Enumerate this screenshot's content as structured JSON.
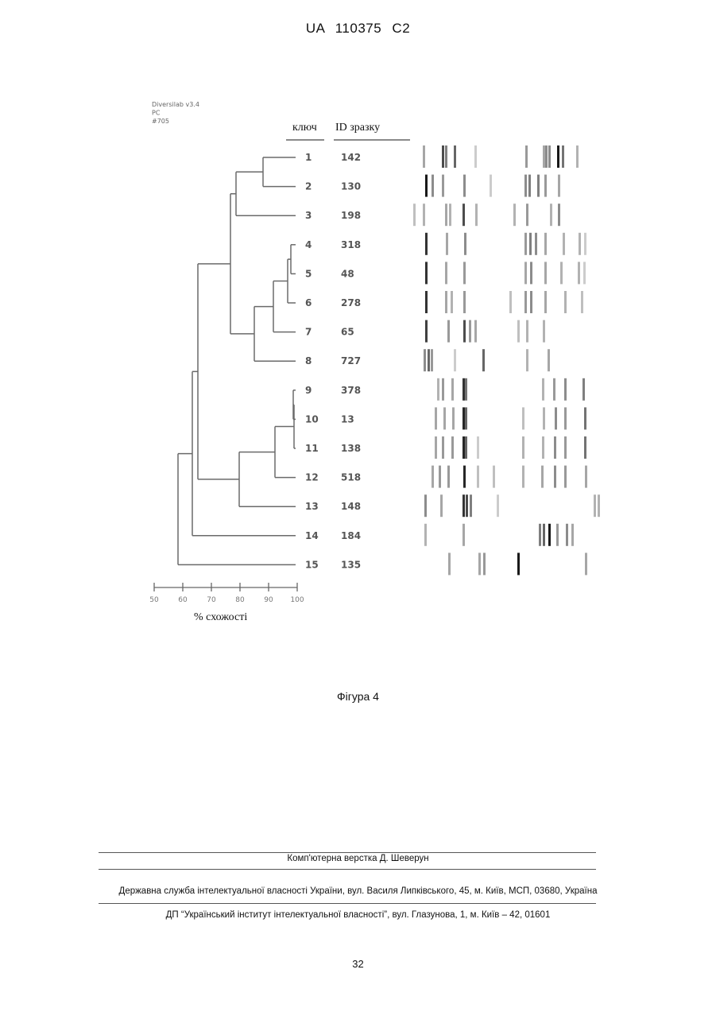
{
  "header": {
    "patent_id": "UA   110375   C2"
  },
  "figure": {
    "software": [
      "Diversilab v3.4",
      "PC",
      "#705"
    ],
    "columns": {
      "key": "ключ",
      "sample_id": "ID зразку"
    },
    "rows": [
      {
        "key": "1",
        "id": "142"
      },
      {
        "key": "2",
        "id": "130"
      },
      {
        "key": "3",
        "id": "198"
      },
      {
        "key": "4",
        "id": "318"
      },
      {
        "key": "5",
        "id": "48"
      },
      {
        "key": "6",
        "id": "278"
      },
      {
        "key": "7",
        "id": "65"
      },
      {
        "key": "8",
        "id": "727"
      },
      {
        "key": "9",
        "id": "378"
      },
      {
        "key": "10",
        "id": "13"
      },
      {
        "key": "11",
        "id": "138"
      },
      {
        "key": "12",
        "id": "518"
      },
      {
        "key": "13",
        "id": "148"
      },
      {
        "key": "14",
        "id": "184"
      },
      {
        "key": "15",
        "id": "135"
      }
    ],
    "axis": {
      "ticks": [
        "50",
        "60",
        "70",
        "80",
        "90",
        "100"
      ],
      "title": "% схожості"
    }
  },
  "caption": "Фігура 4",
  "footer": {
    "typesetter": "Комп'ютерна верстка Д. Шеверун",
    "office": "Державна служба інтелектуальної власності України, вул. Василя Липківського, 45, м. Київ, МСП, 03680, Україна",
    "institute": "ДП “Український інститут інтелектуальної власності”, вул. Глазунова, 1, м. Київ – 42, 01601"
  },
  "page_number": "32"
}
